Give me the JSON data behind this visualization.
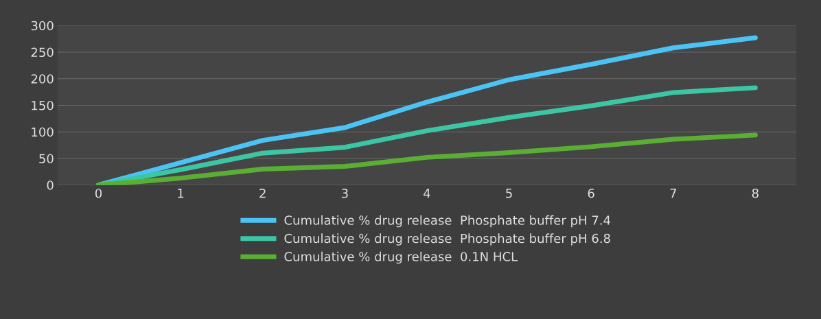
{
  "chart_data": {
    "type": "line",
    "x": [
      0,
      1,
      2,
      3,
      4,
      5,
      6,
      7,
      8
    ],
    "xlim": [
      -0.5,
      8.5
    ],
    "xticks": [
      0,
      1,
      2,
      3,
      4,
      5,
      6,
      7,
      8
    ],
    "ylim": [
      0,
      300
    ],
    "yticks": [
      0,
      50,
      100,
      150,
      200,
      250,
      300
    ],
    "grid": "y",
    "legend": "bottom",
    "line_style": "solid",
    "series": [
      {
        "name": "Cumulative % drug release  Phosphate buffer pH 7.4",
        "color": "#4cc3f5",
        "values": [
          0,
          42,
          84,
          108,
          156,
          198,
          227,
          258,
          277
        ]
      },
      {
        "name": "Cumulative % drug release  Phosphate buffer pH 6.8",
        "color": "#3cc6a4",
        "values": [
          0,
          29,
          60,
          71,
          102,
          127,
          149,
          174,
          183
        ]
      },
      {
        "name": "Cumulative % drug release  0.1N HCL",
        "color": "#5aae34",
        "values": [
          0,
          13,
          30,
          35,
          52,
          61,
          72,
          86,
          94
        ]
      }
    ]
  }
}
